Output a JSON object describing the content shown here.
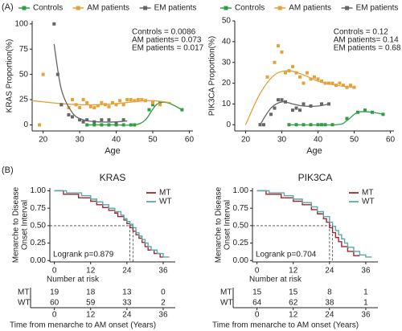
{
  "panels": [
    "(A)",
    "(B)"
  ],
  "chart_data": [
    {
      "type": "scatter",
      "xlabel": "Age",
      "ylabel": "KRAS Proportion(%)",
      "xlim": [
        17,
        61
      ],
      "xticks": [
        20,
        30,
        40,
        50,
        60
      ],
      "ylim": [
        -6,
        103
      ],
      "yticks": [
        0,
        25,
        50,
        75,
        100
      ],
      "annotations": [
        "Controls = 0.0086",
        "AM patients= 0.073",
        "EM patients = 0.017"
      ],
      "series": [
        {
          "name": "Controls",
          "color": "#2e9e44",
          "x": [
            32,
            34,
            36,
            38,
            40,
            42,
            44,
            45,
            49,
            50,
            52,
            58
          ],
          "values": [
            0,
            0,
            0,
            0,
            0,
            0,
            0,
            0,
            15,
            20,
            22,
            15
          ],
          "fit_x": [
            32,
            40,
            45,
            48,
            51,
            54,
            58
          ],
          "fit_values": [
            0,
            0,
            0,
            5,
            20,
            22,
            15
          ]
        },
        {
          "name": "AM patients",
          "color": "#e3a23a",
          "x": [
            19,
            20,
            25,
            27,
            28,
            29,
            30,
            31,
            32,
            33,
            34,
            35,
            36,
            37,
            38,
            39,
            40,
            41,
            42,
            43,
            44,
            45,
            46,
            47,
            48,
            50,
            52
          ],
          "values": [
            0,
            50,
            20,
            17,
            25,
            20,
            17,
            25,
            22,
            18,
            17,
            19,
            22,
            20,
            18,
            22,
            20,
            24,
            20,
            25,
            25,
            24,
            25,
            25,
            24,
            22,
            20
          ],
          "fit_x": [
            17,
            25,
            30,
            35,
            40,
            45,
            50,
            55
          ],
          "fit_values": [
            24,
            21,
            20,
            20,
            21,
            23,
            24,
            22
          ]
        },
        {
          "name": "EM patients",
          "color": "#666666",
          "x": [
            23,
            24,
            25,
            27,
            28,
            30,
            31,
            32,
            34,
            36,
            38,
            40,
            42
          ],
          "values": [
            100,
            50,
            20,
            10,
            8,
            5,
            3,
            5,
            3,
            5,
            5,
            2,
            5
          ],
          "fit_x": [
            23,
            25,
            28,
            31,
            35,
            40,
            43
          ],
          "fit_values": [
            80,
            35,
            12,
            5,
            3,
            3,
            4
          ]
        }
      ]
    },
    {
      "type": "scatter",
      "xlabel": "Age",
      "ylabel": "PIK3CA Proportion(%)",
      "xlim": [
        17,
        61
      ],
      "xticks": [
        20,
        30,
        40,
        50,
        60
      ],
      "ylim": [
        -3,
        50
      ],
      "yticks": [
        0,
        10,
        20,
        30,
        40,
        50
      ],
      "annotations": [
        "Controls = 0.12",
        "AM patients= 0.14",
        "EM patients = 0.68"
      ],
      "series": [
        {
          "name": "Controls",
          "color": "#2e9e44",
          "x": [
            32,
            34,
            36,
            38,
            40,
            41,
            42,
            44,
            48,
            51,
            53,
            55,
            58
          ],
          "values": [
            0,
            0,
            0,
            0,
            0,
            0,
            0,
            0,
            3,
            6,
            7,
            6,
            5
          ],
          "fit_x": [
            32,
            45,
            48,
            51,
            55,
            58
          ],
          "fit_values": [
            0,
            0,
            2,
            6,
            6,
            5
          ]
        },
        {
          "name": "AM patients",
          "color": "#e3a23a",
          "x": [
            26,
            28,
            29,
            30,
            31,
            32,
            33,
            34,
            35,
            36,
            37,
            38,
            39,
            40,
            41,
            42,
            43,
            44,
            45,
            46,
            47,
            48,
            49,
            50
          ],
          "values": [
            23,
            30,
            38,
            35,
            25,
            26,
            28,
            25,
            23,
            20,
            25,
            22,
            23,
            22,
            21,
            20,
            20,
            20,
            19,
            20,
            19,
            18,
            19,
            18
          ],
          "fit_x": [
            20,
            24,
            28,
            32,
            36,
            40,
            45,
            50
          ],
          "fit_values": [
            0,
            15,
            24,
            26,
            24,
            21,
            19,
            18
          ]
        },
        {
          "name": "EM patients",
          "color": "#666666",
          "x": [
            24,
            25,
            27,
            28,
            29,
            30,
            31,
            33,
            34,
            35,
            36,
            38,
            41,
            43
          ],
          "values": [
            0,
            0,
            5,
            8,
            12,
            12,
            11,
            7,
            8,
            7,
            10,
            9,
            10,
            10
          ],
          "fit_x": [
            24,
            27,
            30,
            33,
            36,
            40,
            43
          ],
          "fit_values": [
            0,
            8,
            11,
            10,
            9,
            9,
            10
          ]
        }
      ]
    },
    {
      "type": "km",
      "title": "KRAS",
      "ylabel": [
        "Menarche to Disease",
        "Onset Interval"
      ],
      "xlim": [
        -1.5,
        40
      ],
      "xticks": [
        0,
        12,
        24,
        36
      ],
      "ylim": [
        -0.02,
        1.04
      ],
      "yticks": [
        {
          "value": 0,
          "label": "0.00"
        },
        {
          "value": 0.25,
          "label": "0.25"
        },
        {
          "value": 0.5,
          "label": "0.50"
        },
        {
          "value": 0.75,
          "label": "0.75"
        },
        {
          "value": 1,
          "label": "1.00"
        }
      ],
      "annotation": "Logrank p=0.879",
      "series": [
        {
          "name": "MT",
          "color": "#a3252b",
          "median": 25,
          "x": [
            0,
            3,
            8,
            12,
            14,
            16,
            18,
            20,
            21,
            23,
            24,
            25,
            26,
            27,
            28,
            29,
            30,
            31,
            33,
            35,
            36
          ],
          "values": [
            1,
            0.95,
            0.9,
            0.85,
            0.8,
            0.76,
            0.72,
            0.68,
            0.63,
            0.58,
            0.53,
            0.47,
            0.42,
            0.37,
            0.32,
            0.26,
            0.2,
            0.15,
            0.1,
            0.05,
            0.05
          ]
        },
        {
          "name": "WT",
          "color": "#5aa7a8",
          "median": 26,
          "x": [
            0,
            4,
            9,
            12,
            14,
            16,
            18,
            20,
            22,
            23,
            24,
            25,
            26,
            27,
            28,
            29,
            30,
            31,
            32,
            34,
            36,
            38
          ],
          "values": [
            1,
            0.97,
            0.93,
            0.88,
            0.84,
            0.8,
            0.75,
            0.7,
            0.65,
            0.6,
            0.56,
            0.52,
            0.47,
            0.4,
            0.35,
            0.3,
            0.25,
            0.2,
            0.15,
            0.1,
            0.05,
            0.05
          ]
        }
      ],
      "risk": {
        "title": "Number at risk",
        "xlabel": "Time from menarche to AM onset (Years)",
        "rows": [
          {
            "name": "MT",
            "values": [
              19,
              18,
              13,
              0
            ]
          },
          {
            "name": "WT",
            "values": [
              60,
              59,
              33,
              2
            ]
          }
        ]
      }
    },
    {
      "type": "km",
      "title": "PIK3CA",
      "ylabel": [
        "Menarche to Disease",
        "Onset Interval"
      ],
      "xlim": [
        -1.5,
        40
      ],
      "xticks": [
        0,
        12,
        24,
        36
      ],
      "ylim": [
        -0.02,
        1.04
      ],
      "yticks": [
        {
          "value": 0,
          "label": "0.00"
        },
        {
          "value": 0.25,
          "label": "0.25"
        },
        {
          "value": 0.5,
          "label": "0.50"
        },
        {
          "value": 0.75,
          "label": "0.75"
        },
        {
          "value": 1,
          "label": "1.00"
        }
      ],
      "annotation": "Logrank p=0.704",
      "series": [
        {
          "name": "MT",
          "color": "#a3252b",
          "median": 24,
          "x": [
            0,
            3,
            8,
            12,
            15,
            18,
            20,
            22,
            23,
            24,
            25,
            26,
            27,
            28,
            30,
            32,
            34
          ],
          "values": [
            1,
            0.95,
            0.9,
            0.85,
            0.8,
            0.73,
            0.67,
            0.6,
            0.55,
            0.47,
            0.4,
            0.33,
            0.27,
            0.2,
            0.13,
            0.07,
            0.07
          ]
        },
        {
          "name": "WT",
          "color": "#5aa7a8",
          "median": 25,
          "x": [
            0,
            4,
            9,
            12,
            15,
            18,
            20,
            22,
            24,
            25,
            26,
            27,
            28,
            29,
            30,
            32,
            34,
            36,
            38
          ],
          "values": [
            1,
            0.97,
            0.93,
            0.88,
            0.83,
            0.77,
            0.7,
            0.63,
            0.55,
            0.49,
            0.43,
            0.37,
            0.31,
            0.25,
            0.19,
            0.13,
            0.08,
            0.05,
            0.05
          ]
        }
      ],
      "risk": {
        "title": "Number at risk",
        "xlabel": "Time from menarche to AM onset (Years)",
        "rows": [
          {
            "name": "MT",
            "values": [
              15,
              15,
              8,
              1
            ]
          },
          {
            "name": "WT",
            "values": [
              64,
              62,
              38,
              1
            ]
          }
        ]
      }
    }
  ]
}
